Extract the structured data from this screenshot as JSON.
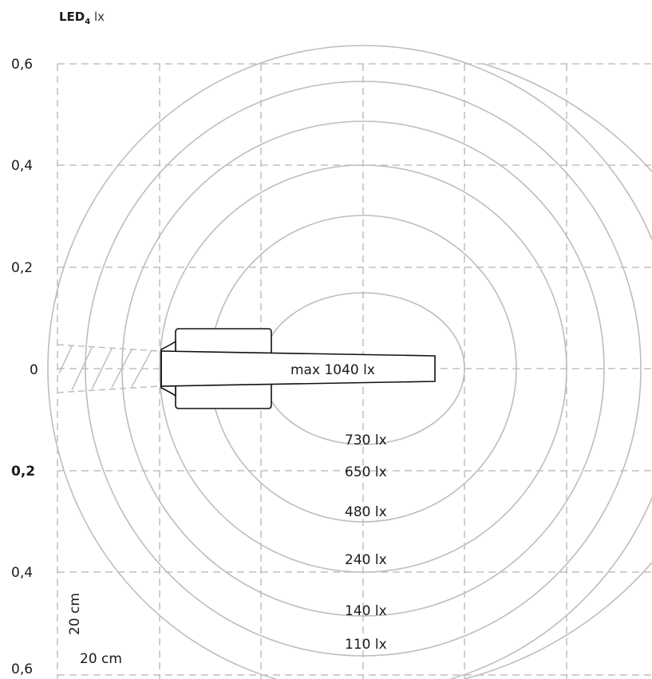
{
  "title": {
    "name": "LED",
    "subscript": "4",
    "unit": "lx"
  },
  "y_axis_labels": [
    "0,6",
    "0,4",
    "0,2",
    "0",
    "0,2",
    "0,4",
    "0,6"
  ],
  "scale_labels": {
    "vertical": "20 cm",
    "horizontal": "20 cm"
  },
  "max_label": "max 1040 lx",
  "isolines": [
    {
      "value": 730,
      "label": "730 lx"
    },
    {
      "value": 650,
      "label": "650 lx"
    },
    {
      "value": 480,
      "label": "480 lx"
    },
    {
      "value": 240,
      "label": "240 lx"
    },
    {
      "value": 140,
      "label": "140 lx"
    },
    {
      "value": 110,
      "label": "110 lx"
    }
  ],
  "colors": {
    "grid": "#b5b5b5",
    "contour": "#bdbdbd",
    "lamp": "#111111",
    "text": "#1a1a1a"
  }
}
